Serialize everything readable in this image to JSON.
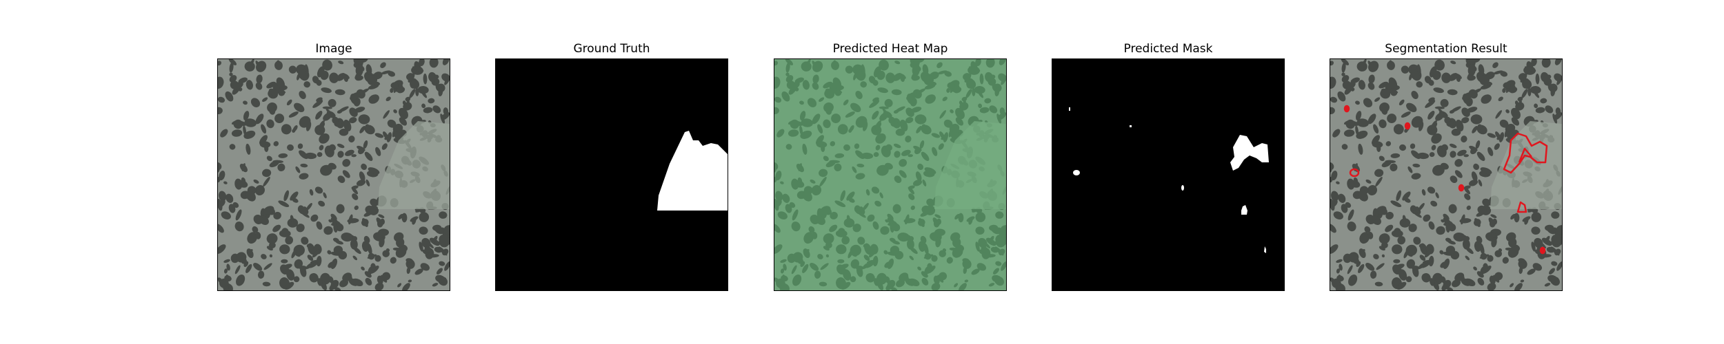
{
  "figure": {
    "panels": [
      {
        "title": "Image"
      },
      {
        "title": "Ground Truth"
      },
      {
        "title": "Predicted Heat Map"
      },
      {
        "title": "Predicted Mask"
      },
      {
        "title": "Segmentation Result"
      }
    ]
  },
  "colors": {
    "background": "#ffffff",
    "texture_base": "#8b918b",
    "texture_spot": "#3c3f3c",
    "defect_patch": "#9aa49a",
    "mask_foreground": "#ffffff",
    "mask_background": "#000000",
    "heatmap_overlay": "#5ab46e",
    "contour": "#e0161e"
  }
}
